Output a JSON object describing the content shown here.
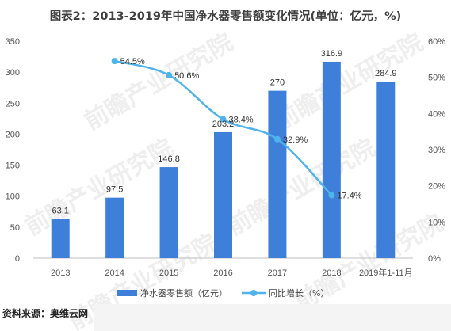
{
  "title": "图表2：2013-2019年中国净水器零售额变化情况(单位：亿元，%)",
  "source_text": "资料来源：奥维云网",
  "watermark": "前瞻产业研究院",
  "colors": {
    "bar": "#3E7FDA",
    "line": "#4FB3EC",
    "axis": "#bfbfbf"
  },
  "chart_data": {
    "type": "bar+line",
    "title": "图表2：2013-2019年中国净水器零售额变化情况(单位：亿元，%)",
    "categories": [
      "2013",
      "2014",
      "2015",
      "2016",
      "2017",
      "2018",
      "2019年1-11月"
    ],
    "y_left": {
      "min": 0,
      "max": 350,
      "ticks": [
        0,
        50,
        100,
        150,
        200,
        250,
        300,
        350
      ]
    },
    "y_right": {
      "min": 0,
      "max": 60,
      "ticks": [
        "0%",
        "10%",
        "20%",
        "30%",
        "40%",
        "50%",
        "60%"
      ]
    },
    "series": [
      {
        "name": "净水器零售额（亿元）",
        "type": "bar",
        "axis": "left",
        "values": [
          63.1,
          97.5,
          146.8,
          203.2,
          270,
          316.9,
          284.9
        ],
        "labels": [
          "63.1",
          "97.5",
          "146.8",
          "203.2",
          "270",
          "316.9",
          "284.9"
        ]
      },
      {
        "name": "同比增长（%）",
        "type": "line",
        "axis": "right",
        "values": [
          null,
          54.5,
          50.6,
          38.4,
          32.9,
          17.4,
          null
        ],
        "labels": [
          "",
          "54.5%",
          "50.6%",
          "38.4%",
          "32.9%",
          "17.4%",
          ""
        ]
      }
    ],
    "legend_position": "bottom",
    "grid": false
  }
}
